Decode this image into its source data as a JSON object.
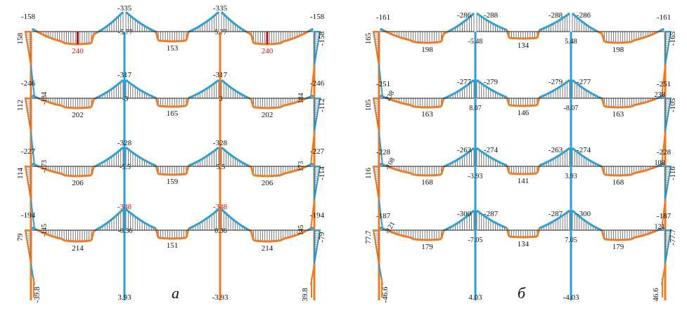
{
  "colors": {
    "positive": "#f07a22",
    "negative": "#2a9fd6",
    "hatch": "#444444",
    "peak": "#b5121b",
    "text": "#111111",
    "peak_text": "#cc1111",
    "frame": "#222222"
  },
  "panels": [
    {
      "id": "a",
      "caption": "а",
      "beams": [
        {
          "spans": [
            {
              "left": "-158",
              "mid": "240",
              "right": "-335",
              "peak": true
            },
            {
              "left": "-5.77",
              "mid": "153",
              "right": "5.77"
            },
            {
              "left": "-335",
              "mid": "240",
              "right": "-158",
              "peak": true
            }
          ],
          "top_mid": [
            "-335",
            "-335"
          ],
          "col_left": "158",
          "col_right": "-158"
        },
        {
          "spans": [
            {
              "left": "-246",
              "mid": "202",
              "right": "-317",
              "extra": "-184"
            },
            {
              "left": "-3",
              "mid": "165",
              "right": "3"
            },
            {
              "left": "-317",
              "mid": "202",
              "right": "-246",
              "extra": "184"
            }
          ],
          "top_mid": [
            "-317",
            "-317"
          ],
          "col_left": "112",
          "col_right": "-112"
        },
        {
          "spans": [
            {
              "left": "-227",
              "mid": "206",
              "right": "-328",
              "extra": "-173"
            },
            {
              "left": "-5.5",
              "mid": "159",
              "right": "5.5"
            },
            {
              "left": "-328",
              "mid": "206",
              "right": "-227",
              "extra": "173"
            }
          ],
          "top_mid": [
            "-328",
            "-328"
          ],
          "col_left": "114",
          "col_right": "-114"
        },
        {
          "spans": [
            {
              "left": "-194",
              "mid": "214",
              "right": "-348",
              "extra": "-145",
              "peak_text": true
            },
            {
              "left": "-0.36",
              "mid": "151",
              "right": "0.36"
            },
            {
              "left": "-348",
              "mid": "214",
              "right": "-194",
              "extra": "145",
              "peak_text": true
            }
          ],
          "top_mid": [
            "-348",
            "-348"
          ],
          "col_left": "79",
          "col_right": "-79"
        }
      ],
      "base": [
        "-39.8",
        "3.93",
        "-3.93",
        "39.8"
      ]
    },
    {
      "id": "b",
      "caption": "б",
      "beams": [
        {
          "top": [
            "-161",
            "-286",
            "-288",
            "-288",
            "-286",
            "-161"
          ],
          "mid": [
            "198",
            "134",
            "198"
          ],
          "inner": [
            "-5.48",
            "5.48"
          ],
          "col_left": "165",
          "col_right": "-165"
        },
        {
          "top": [
            "-251",
            "-277",
            "-279",
            "-279",
            "-277",
            "-251"
          ],
          "mid": [
            "163",
            "146",
            "163"
          ],
          "inner": [
            "8.07",
            "-8.07"
          ],
          "extra": [
            "238",
            "238"
          ],
          "col_left": "105",
          "col_right": "-105"
        },
        {
          "top": [
            "-228",
            "-263",
            "-274",
            "-263",
            "-274",
            "-228"
          ],
          "mid": [
            "168",
            "141",
            "168"
          ],
          "inner": [
            "-3.93",
            "3.93"
          ],
          "extra": [
            "-108",
            "108"
          ],
          "col_left": "116",
          "col_right": "-116"
        },
        {
          "top": [
            "-187",
            "-300",
            "-287",
            "-287",
            "-300",
            "-187"
          ],
          "mid": [
            "179",
            "134",
            "179"
          ],
          "inner": [
            "-7.05",
            "7.05"
          ],
          "extra": [
            "-121",
            "121"
          ],
          "col_left": "77.7",
          "col_right": "-77.7"
        }
      ],
      "base": [
        "-46.6",
        "4.03",
        "-4.03",
        "46.6"
      ]
    }
  ]
}
